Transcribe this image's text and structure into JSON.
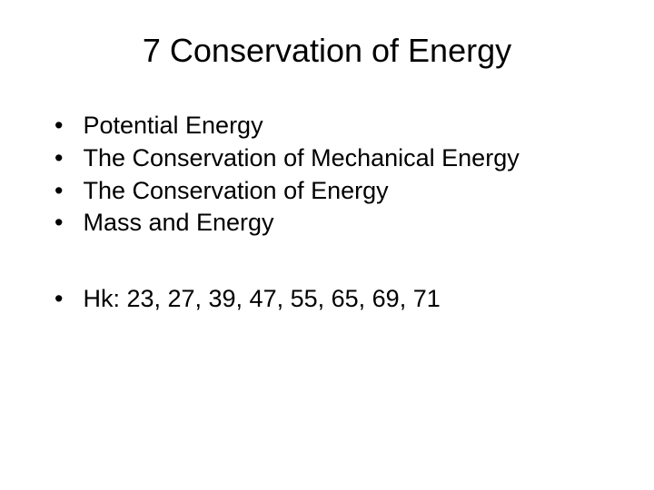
{
  "slide": {
    "title": "7 Conservation of Energy",
    "topics": [
      "Potential Energy",
      "The Conservation of Mechanical Energy",
      "The Conservation of Energy",
      "Mass and Energy"
    ],
    "homework": "Hk: 23, 27, 39, 47, 55, 65, 69, 71"
  },
  "styling": {
    "background_color": "#ffffff",
    "text_color": "#000000",
    "title_fontsize": 36,
    "body_fontsize": 27,
    "font_family": "Arial",
    "bullet_char": "•"
  }
}
